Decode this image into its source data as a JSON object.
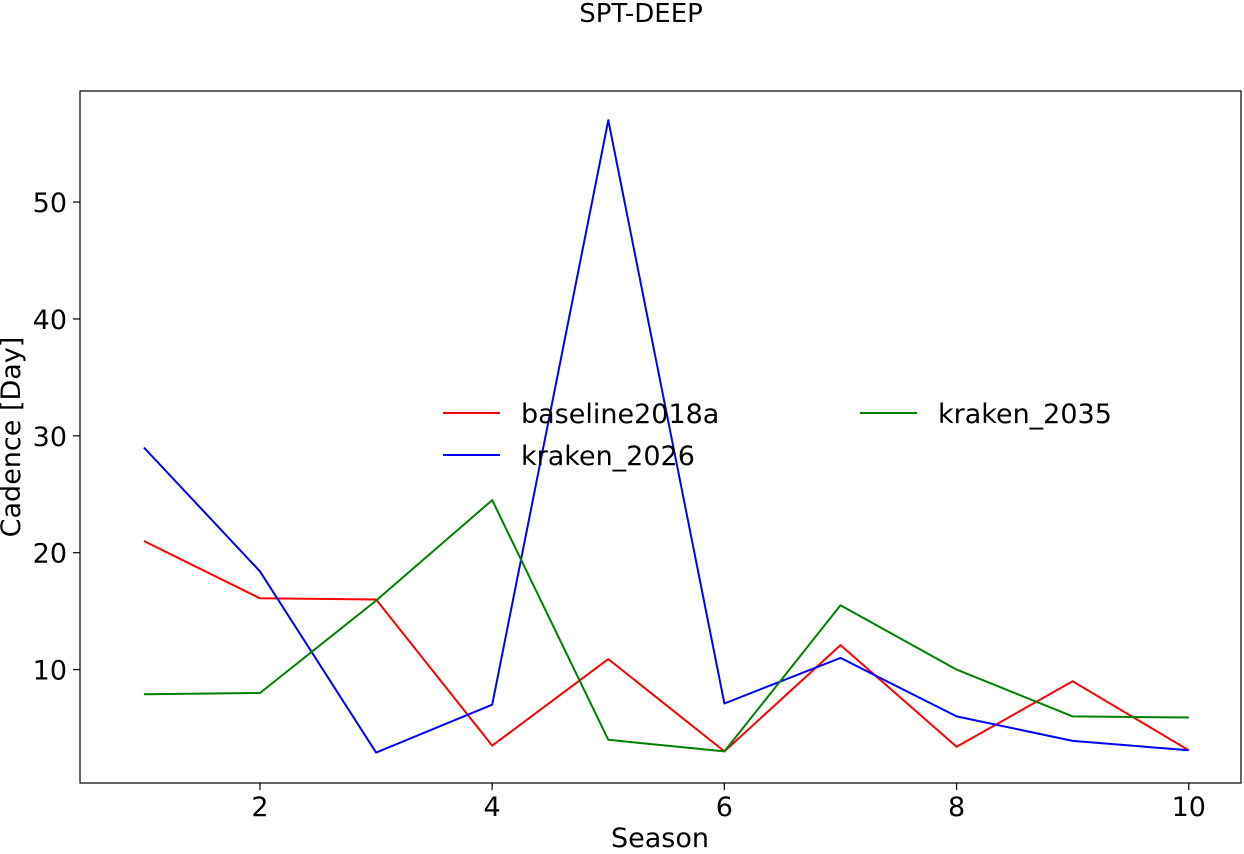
{
  "chart_data": {
    "type": "line",
    "title": "SPT-DEEP",
    "xlabel": "Season",
    "ylabel": "Cadence [Day]",
    "xlim": [
      0.45,
      10.45
    ],
    "ylim": [
      0.3,
      59.5
    ],
    "xticks": [
      2,
      4,
      6,
      8,
      10
    ],
    "yticks": [
      10,
      20,
      30,
      40,
      50
    ],
    "grid": false,
    "legend_position": "center",
    "x": [
      1,
      2,
      3,
      4,
      5,
      6,
      7,
      8,
      9,
      10
    ],
    "series": [
      {
        "name": "baseline2018a",
        "color": "#ff0000",
        "values": [
          21.0,
          16.1,
          16.0,
          3.5,
          10.9,
          3.0,
          12.1,
          3.4,
          9.0,
          3.1
        ]
      },
      {
        "name": "kraken_2026",
        "color": "#0000ff",
        "values": [
          29.0,
          18.4,
          2.9,
          7.0,
          57.0,
          7.1,
          11.0,
          6.0,
          3.9,
          3.1
        ]
      },
      {
        "name": "kraken_2035",
        "color": "#008000",
        "values": [
          7.9,
          8.0,
          15.9,
          24.5,
          4.0,
          3.0,
          15.5,
          10.0,
          6.0,
          5.9
        ]
      }
    ]
  }
}
